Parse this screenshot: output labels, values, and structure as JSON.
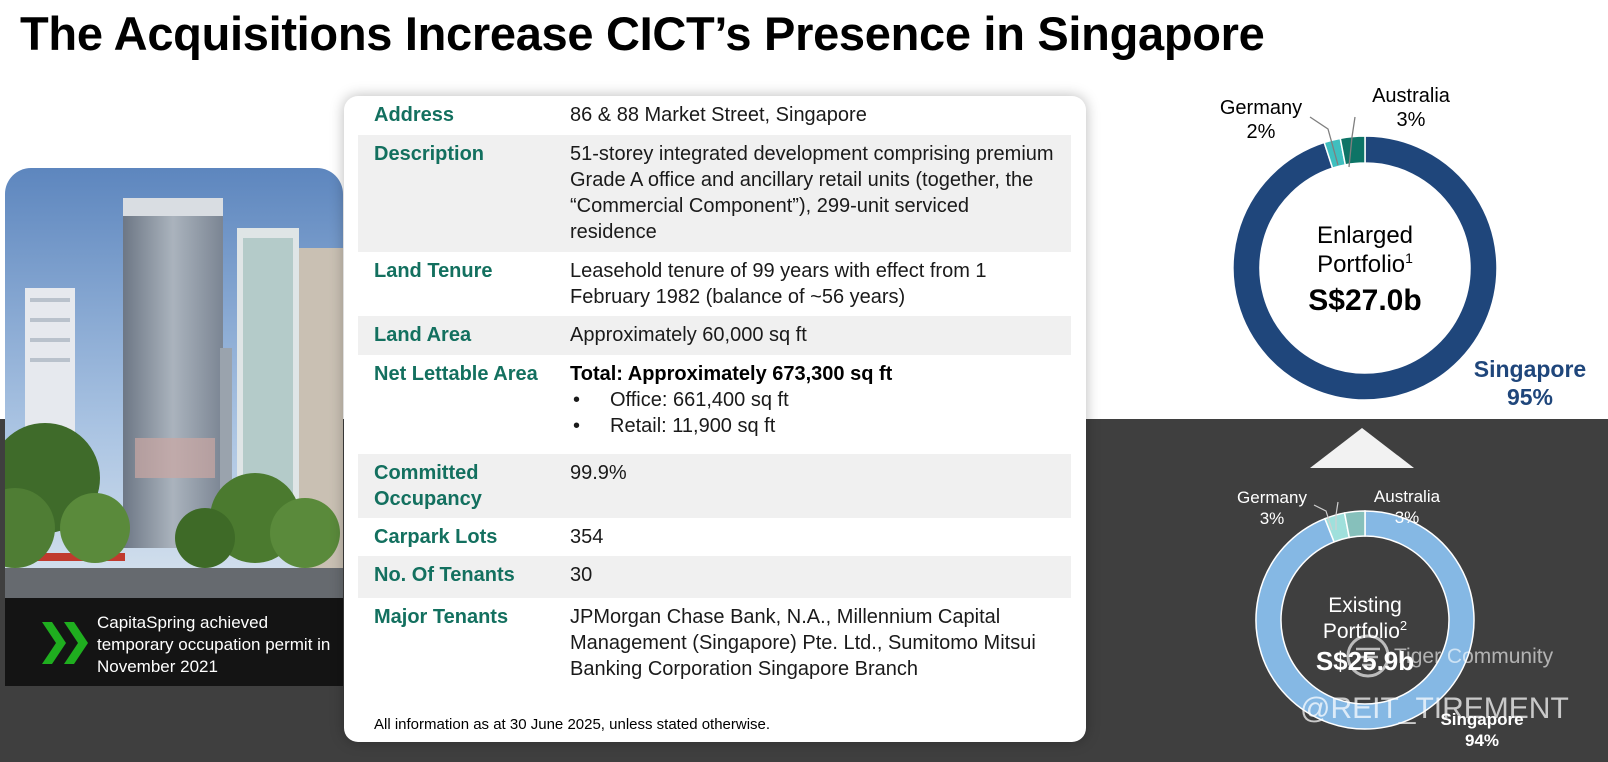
{
  "title": "The Acquisitions Increase CICT’s Presence in Singapore",
  "caption": "CapitaSpring achieved temporary occupation permit in November 2021",
  "details": {
    "address_label": "Address",
    "address_value": "86 & 88 Market Street, Singapore",
    "description_label": "Description",
    "description_value": "51-storey integrated development comprising premium Grade A office and ancillary retail units (together, the “Commercial Component”), 299-unit serviced residence",
    "land_tenure_label": "Land Tenure",
    "land_tenure_value": "Leasehold tenure of 99 years with effect from 1 February 1982 (balance of ~56 years)",
    "land_area_label": "Land Area",
    "land_area_value": "Approximately 60,000 sq ft",
    "nla_label": "Net Lettable Area",
    "nla_total": "Total: Approximately 673,300 sq ft",
    "nla_office": "Office: 661,400 sq ft",
    "nla_retail": "Retail: 11,900 sq ft",
    "bullet": "•",
    "occupancy_label": "Committed Occupancy",
    "occupancy_value": "99.9%",
    "carpark_label": "Carpark Lots",
    "carpark_value": "354",
    "tenants_label": "No. Of Tenants",
    "tenants_value": "30",
    "major_tenants_label": "Major Tenants",
    "major_tenants_value": "JPMorgan Chase Bank, N.A., Millennium Capital Management (Singapore) Pte. Ltd., Sumitomo Mitsui Banking Corporation Singapore Branch"
  },
  "footnote": "All information as at 30 June 2025, unless stated otherwise.",
  "chart_data": [
    {
      "type": "pie",
      "center_title_1": "Enlarged",
      "center_title_2": "Portfolio",
      "center_title_sup": "1",
      "center_value": "S$27.0b",
      "slices": [
        {
          "label": "Singapore",
          "percent_label": "95%",
          "value": 95,
          "color": "#1f467b"
        },
        {
          "label": "Germany",
          "percent_label": "2%",
          "value": 2,
          "color": "#3fbfbf"
        },
        {
          "label": "Australia",
          "percent_label": "3%",
          "value": 3,
          "color": "#0d7466"
        }
      ]
    },
    {
      "type": "pie",
      "center_title_1": "Existing",
      "center_title_2": "Portfolio",
      "center_title_sup": "2",
      "center_value": "S$25.9b",
      "slices": [
        {
          "label": "Singapore",
          "percent_label": "94%",
          "value": 94,
          "color": "#85b8e4"
        },
        {
          "label": "Germany",
          "percent_label": "3%",
          "value": 3,
          "color": "#9fe0dc"
        },
        {
          "label": "Australia",
          "percent_label": "3%",
          "value": 3,
          "color": "#86c0bb"
        }
      ]
    }
  ],
  "watermark": {
    "line1": "Tiger Community",
    "line2": "@REIT_TIREMENT"
  },
  "colors": {
    "label_green": "#13705f",
    "dark_band": "#3f3f3f",
    "chevron_green": "#1fae1f"
  },
  "icons": [
    "double-chevron-icon",
    "up-triangle-icon",
    "tiger-logo-icon"
  ]
}
